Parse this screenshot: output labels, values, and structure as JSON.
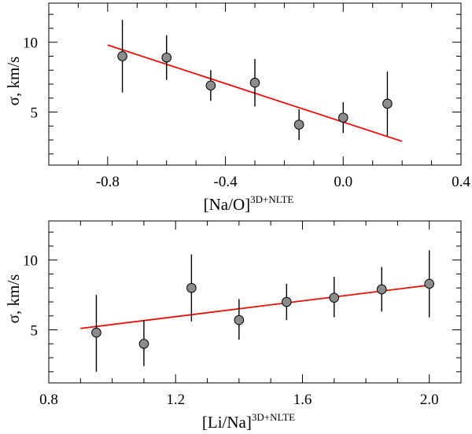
{
  "chart_data": [
    {
      "type": "scatter",
      "title": "",
      "xlabel": "[Na/O]",
      "xlabel_sup": "3D+NLTE",
      "ylabel": "σ, km/s",
      "xlim": [
        -1.0,
        0.4
      ],
      "ylim": [
        1.2,
        12.8
      ],
      "xticks_major": [
        -0.8,
        -0.4,
        0.0,
        0.4
      ],
      "xtick_labels": [
        "-0.8",
        "-0.4",
        "0.0",
        "0.4"
      ],
      "xticks_minor": [
        -1.0,
        -0.9,
        -0.7,
        -0.6,
        -0.5,
        -0.3,
        -0.2,
        -0.1,
        0.1,
        0.2,
        0.3
      ],
      "yticks_major": [
        5,
        10
      ],
      "ytick_labels": [
        "5",
        "10"
      ],
      "yticks_minor": [
        2,
        3,
        4,
        6,
        7,
        8,
        9,
        11,
        12
      ],
      "series": [
        {
          "name": "data",
          "x": [
            -0.75,
            -0.6,
            -0.45,
            -0.3,
            -0.15,
            0.0,
            0.15
          ],
          "y": [
            9.0,
            8.9,
            6.9,
            7.1,
            4.1,
            4.6,
            5.6
          ],
          "yerr_low": [
            6.4,
            7.3,
            5.8,
            5.4,
            3.0,
            3.5,
            3.3
          ],
          "yerr_high": [
            11.6,
            10.5,
            8.0,
            8.8,
            5.2,
            5.7,
            7.9
          ]
        }
      ],
      "fit": {
        "x": [
          -0.8,
          0.2
        ],
        "y": [
          9.8,
          2.9
        ]
      }
    },
    {
      "type": "scatter",
      "title": "",
      "xlabel": "[Li/Na]",
      "xlabel_sup": "3D+NLTE",
      "ylabel": "σ, km/s",
      "xlim": [
        0.8,
        2.1
      ],
      "ylim": [
        1.2,
        12.8
      ],
      "xticks_major": [
        0.8,
        1.2,
        1.6,
        2.0
      ],
      "xtick_labels": [
        "0.8",
        "1.2",
        "1.6",
        "2.0"
      ],
      "xticks_minor": [
        0.9,
        1.0,
        1.1,
        1.3,
        1.4,
        1.5,
        1.7,
        1.8,
        1.9,
        2.1
      ],
      "yticks_major": [
        5,
        10
      ],
      "ytick_labels": [
        "5",
        "10"
      ],
      "yticks_minor": [
        2,
        3,
        4,
        6,
        7,
        8,
        9,
        11,
        12
      ],
      "series": [
        {
          "name": "data",
          "x": [
            0.95,
            1.1,
            1.25,
            1.4,
            1.55,
            1.7,
            1.85,
            2.0
          ],
          "y": [
            4.8,
            4.0,
            8.0,
            5.7,
            7.0,
            7.3,
            7.9,
            8.3
          ],
          "yerr_low": [
            2.0,
            2.4,
            5.6,
            4.3,
            5.7,
            5.9,
            6.3,
            5.9
          ],
          "yerr_high": [
            7.5,
            5.7,
            10.4,
            7.2,
            8.3,
            8.8,
            9.5,
            10.7
          ]
        }
      ],
      "fit": {
        "x": [
          0.9,
          2.0
        ],
        "y": [
          5.1,
          8.2
        ]
      }
    }
  ]
}
